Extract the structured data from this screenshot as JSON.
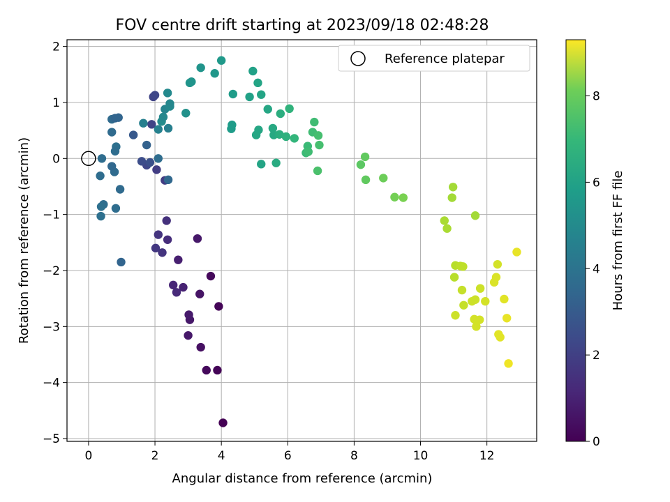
{
  "chart_data": {
    "type": "scatter",
    "title": "FOV centre drift starting at 2023/09/18 02:48:28",
    "xlabel": "Angular distance from reference (arcmin)",
    "ylabel": "Rotation from reference (arcmin)",
    "xlim": [
      -0.65,
      13.5
    ],
    "ylim": [
      -5.05,
      2.12
    ],
    "xticks": [
      0,
      2,
      4,
      6,
      8,
      10,
      12
    ],
    "yticks": [
      -5,
      -4,
      -3,
      -2,
      -1,
      0,
      1,
      2
    ],
    "grid": true,
    "legend": {
      "position": "top-right",
      "entries": [
        "Reference platepar"
      ]
    },
    "reference_point": {
      "x": 0,
      "y": 0,
      "label": "Reference platepar"
    },
    "colorbar": {
      "label": "Hours from first FF file",
      "range": [
        0,
        9.3
      ],
      "ticks": [
        0,
        2,
        4,
        6,
        8
      ],
      "colormap": "viridis"
    },
    "points": [
      {
        "x": 4.05,
        "y": -4.72,
        "hours": 0.0
      },
      {
        "x": 3.88,
        "y": -3.78,
        "hours": 0.1
      },
      {
        "x": 3.55,
        "y": -3.78,
        "hours": 0.2
      },
      {
        "x": 3.92,
        "y": -2.64,
        "hours": 0.1
      },
      {
        "x": 3.68,
        "y": -2.1,
        "hours": 0.2
      },
      {
        "x": 3.38,
        "y": -3.37,
        "hours": 0.4
      },
      {
        "x": 3.35,
        "y": -2.42,
        "hours": 0.5
      },
      {
        "x": 3.28,
        "y": -1.43,
        "hours": 0.6
      },
      {
        "x": 3.05,
        "y": -2.88,
        "hours": 0.6
      },
      {
        "x": 3.02,
        "y": -2.79,
        "hours": 0.7
      },
      {
        "x": 3.0,
        "y": -3.16,
        "hours": 0.6
      },
      {
        "x": 2.85,
        "y": -2.3,
        "hours": 0.9
      },
      {
        "x": 2.7,
        "y": -1.81,
        "hours": 0.8
      },
      {
        "x": 2.65,
        "y": -2.39,
        "hours": 1.1
      },
      {
        "x": 2.55,
        "y": -2.26,
        "hours": 1.0
      },
      {
        "x": 2.38,
        "y": -1.45,
        "hours": 1.2
      },
      {
        "x": 2.35,
        "y": -1.11,
        "hours": 1.3
      },
      {
        "x": 2.22,
        "y": -1.68,
        "hours": 1.4
      },
      {
        "x": 2.1,
        "y": -1.36,
        "hours": 1.4
      },
      {
        "x": 2.02,
        "y": -1.6,
        "hours": 1.5
      },
      {
        "x": 2.3,
        "y": -0.39,
        "hours": 1.7
      },
      {
        "x": 2.05,
        "y": -0.2,
        "hours": 1.7
      },
      {
        "x": 1.75,
        "y": -0.12,
        "hours": 2.0
      },
      {
        "x": 1.9,
        "y": 0.61,
        "hours": 1.9
      },
      {
        "x": 1.95,
        "y": 1.1,
        "hours": 1.9
      },
      {
        "x": 2.0,
        "y": 1.13,
        "hours": 2.0
      },
      {
        "x": 1.6,
        "y": -0.05,
        "hours": 2.2
      },
      {
        "x": 1.85,
        "y": -0.07,
        "hours": 2.3
      },
      {
        "x": 1.35,
        "y": 0.42,
        "hours": 2.6
      },
      {
        "x": 1.75,
        "y": 0.24,
        "hours": 2.9
      },
      {
        "x": 2.1,
        "y": 0.0,
        "hours": 3.3
      },
      {
        "x": 2.4,
        "y": -0.38,
        "hours": 3.1
      },
      {
        "x": 0.95,
        "y": -0.55,
        "hours": 3.2
      },
      {
        "x": 0.98,
        "y": -1.85,
        "hours": 3.0
      },
      {
        "x": 0.82,
        "y": -0.89,
        "hours": 3.3
      },
      {
        "x": 0.78,
        "y": -0.24,
        "hours": 3.2
      },
      {
        "x": 0.7,
        "y": -0.14,
        "hours": 3.1
      },
      {
        "x": 0.83,
        "y": 0.21,
        "hours": 3.4
      },
      {
        "x": 0.8,
        "y": 0.13,
        "hours": 3.3
      },
      {
        "x": 0.7,
        "y": 0.47,
        "hours": 3.2
      },
      {
        "x": 0.7,
        "y": 0.7,
        "hours": 3.2
      },
      {
        "x": 0.8,
        "y": 0.72,
        "hours": 3.0
      },
      {
        "x": 0.9,
        "y": 0.73,
        "hours": 3.0
      },
      {
        "x": 0.4,
        "y": 0.0,
        "hours": 3.3
      },
      {
        "x": 0.35,
        "y": -0.31,
        "hours": 3.3
      },
      {
        "x": 0.45,
        "y": -0.82,
        "hours": 3.3
      },
      {
        "x": 0.38,
        "y": -0.86,
        "hours": 3.4
      },
      {
        "x": 0.37,
        "y": -1.03,
        "hours": 3.4
      },
      {
        "x": 1.65,
        "y": 0.63,
        "hours": 4.0
      },
      {
        "x": 2.1,
        "y": 0.52,
        "hours": 4.1
      },
      {
        "x": 2.4,
        "y": 0.54,
        "hours": 4.0
      },
      {
        "x": 2.2,
        "y": 0.66,
        "hours": 4.5
      },
      {
        "x": 2.25,
        "y": 0.74,
        "hours": 4.3
      },
      {
        "x": 2.3,
        "y": 0.88,
        "hours": 4.2
      },
      {
        "x": 2.45,
        "y": 0.93,
        "hours": 4.4
      },
      {
        "x": 2.45,
        "y": 0.98,
        "hours": 4.3
      },
      {
        "x": 2.38,
        "y": 1.17,
        "hours": 4.4
      },
      {
        "x": 2.93,
        "y": 0.81,
        "hours": 4.7
      },
      {
        "x": 3.05,
        "y": 1.35,
        "hours": 4.8
      },
      {
        "x": 3.1,
        "y": 1.37,
        "hours": 4.8
      },
      {
        "x": 3.38,
        "y": 1.62,
        "hours": 4.8
      },
      {
        "x": 3.8,
        "y": 1.52,
        "hours": 4.9
      },
      {
        "x": 4.0,
        "y": 1.75,
        "hours": 5.0
      },
      {
        "x": 4.35,
        "y": 1.15,
        "hours": 5.1
      },
      {
        "x": 4.32,
        "y": 0.6,
        "hours": 5.1
      },
      {
        "x": 4.3,
        "y": 0.53,
        "hours": 5.1
      },
      {
        "x": 4.85,
        "y": 1.1,
        "hours": 5.3
      },
      {
        "x": 4.95,
        "y": 1.56,
        "hours": 5.3
      },
      {
        "x": 5.1,
        "y": 1.35,
        "hours": 5.4
      },
      {
        "x": 5.2,
        "y": 1.14,
        "hours": 5.4
      },
      {
        "x": 5.05,
        "y": 0.42,
        "hours": 5.5
      },
      {
        "x": 5.12,
        "y": 0.51,
        "hours": 5.5
      },
      {
        "x": 5.2,
        "y": -0.1,
        "hours": 5.4
      },
      {
        "x": 5.4,
        "y": 0.88,
        "hours": 5.5
      },
      {
        "x": 5.55,
        "y": 0.54,
        "hours": 5.6
      },
      {
        "x": 5.58,
        "y": 0.42,
        "hours": 5.6
      },
      {
        "x": 5.65,
        "y": -0.08,
        "hours": 5.7
      },
      {
        "x": 5.75,
        "y": 0.43,
        "hours": 5.8
      },
      {
        "x": 5.78,
        "y": 0.8,
        "hours": 5.8
      },
      {
        "x": 5.95,
        "y": 0.39,
        "hours": 5.9
      },
      {
        "x": 6.05,
        "y": 0.89,
        "hours": 6.0
      },
      {
        "x": 6.2,
        "y": 0.36,
        "hours": 6.1
      },
      {
        "x": 6.55,
        "y": 0.1,
        "hours": 6.3
      },
      {
        "x": 6.6,
        "y": 0.22,
        "hours": 6.3
      },
      {
        "x": 6.62,
        "y": 0.12,
        "hours": 6.4
      },
      {
        "x": 6.75,
        "y": 0.47,
        "hours": 6.4
      },
      {
        "x": 6.8,
        "y": 0.65,
        "hours": 6.4
      },
      {
        "x": 6.92,
        "y": 0.41,
        "hours": 6.5
      },
      {
        "x": 6.95,
        "y": 0.24,
        "hours": 6.5
      },
      {
        "x": 6.9,
        "y": -0.22,
        "hours": 6.6
      },
      {
        "x": 8.2,
        "y": -0.11,
        "hours": 6.9
      },
      {
        "x": 8.33,
        "y": 0.03,
        "hours": 7.0
      },
      {
        "x": 8.35,
        "y": -0.38,
        "hours": 7.0
      },
      {
        "x": 8.88,
        "y": -0.35,
        "hours": 7.2
      },
      {
        "x": 9.22,
        "y": -0.69,
        "hours": 7.3
      },
      {
        "x": 9.48,
        "y": -0.7,
        "hours": 7.4
      },
      {
        "x": 10.72,
        "y": -1.11,
        "hours": 8.1
      },
      {
        "x": 10.8,
        "y": -1.25,
        "hours": 8.1
      },
      {
        "x": 10.95,
        "y": -0.7,
        "hours": 8.0
      },
      {
        "x": 10.98,
        "y": -0.51,
        "hours": 8.0
      },
      {
        "x": 11.65,
        "y": -1.02,
        "hours": 8.0
      },
      {
        "x": 11.05,
        "y": -1.91,
        "hours": 8.3
      },
      {
        "x": 11.02,
        "y": -2.12,
        "hours": 8.3
      },
      {
        "x": 11.2,
        "y": -1.92,
        "hours": 8.4
      },
      {
        "x": 11.28,
        "y": -1.93,
        "hours": 8.4
      },
      {
        "x": 11.25,
        "y": -2.35,
        "hours": 8.5
      },
      {
        "x": 11.05,
        "y": -2.8,
        "hours": 8.6
      },
      {
        "x": 11.3,
        "y": -2.62,
        "hours": 8.5
      },
      {
        "x": 11.55,
        "y": -2.55,
        "hours": 8.6
      },
      {
        "x": 11.65,
        "y": -2.52,
        "hours": 8.6
      },
      {
        "x": 11.62,
        "y": -2.87,
        "hours": 8.7
      },
      {
        "x": 11.68,
        "y": -3.0,
        "hours": 8.7
      },
      {
        "x": 11.78,
        "y": -2.88,
        "hours": 8.7
      },
      {
        "x": 11.8,
        "y": -2.32,
        "hours": 8.6
      },
      {
        "x": 11.95,
        "y": -2.55,
        "hours": 8.7
      },
      {
        "x": 12.22,
        "y": -2.21,
        "hours": 8.8
      },
      {
        "x": 12.28,
        "y": -2.12,
        "hours": 8.8
      },
      {
        "x": 12.32,
        "y": -1.89,
        "hours": 8.7
      },
      {
        "x": 12.35,
        "y": -3.14,
        "hours": 8.9
      },
      {
        "x": 12.4,
        "y": -3.19,
        "hours": 8.9
      },
      {
        "x": 12.52,
        "y": -2.51,
        "hours": 8.9
      },
      {
        "x": 12.6,
        "y": -2.85,
        "hours": 9.0
      },
      {
        "x": 12.65,
        "y": -3.66,
        "hours": 9.1
      },
      {
        "x": 12.9,
        "y": -1.67,
        "hours": 9.0
      }
    ]
  }
}
